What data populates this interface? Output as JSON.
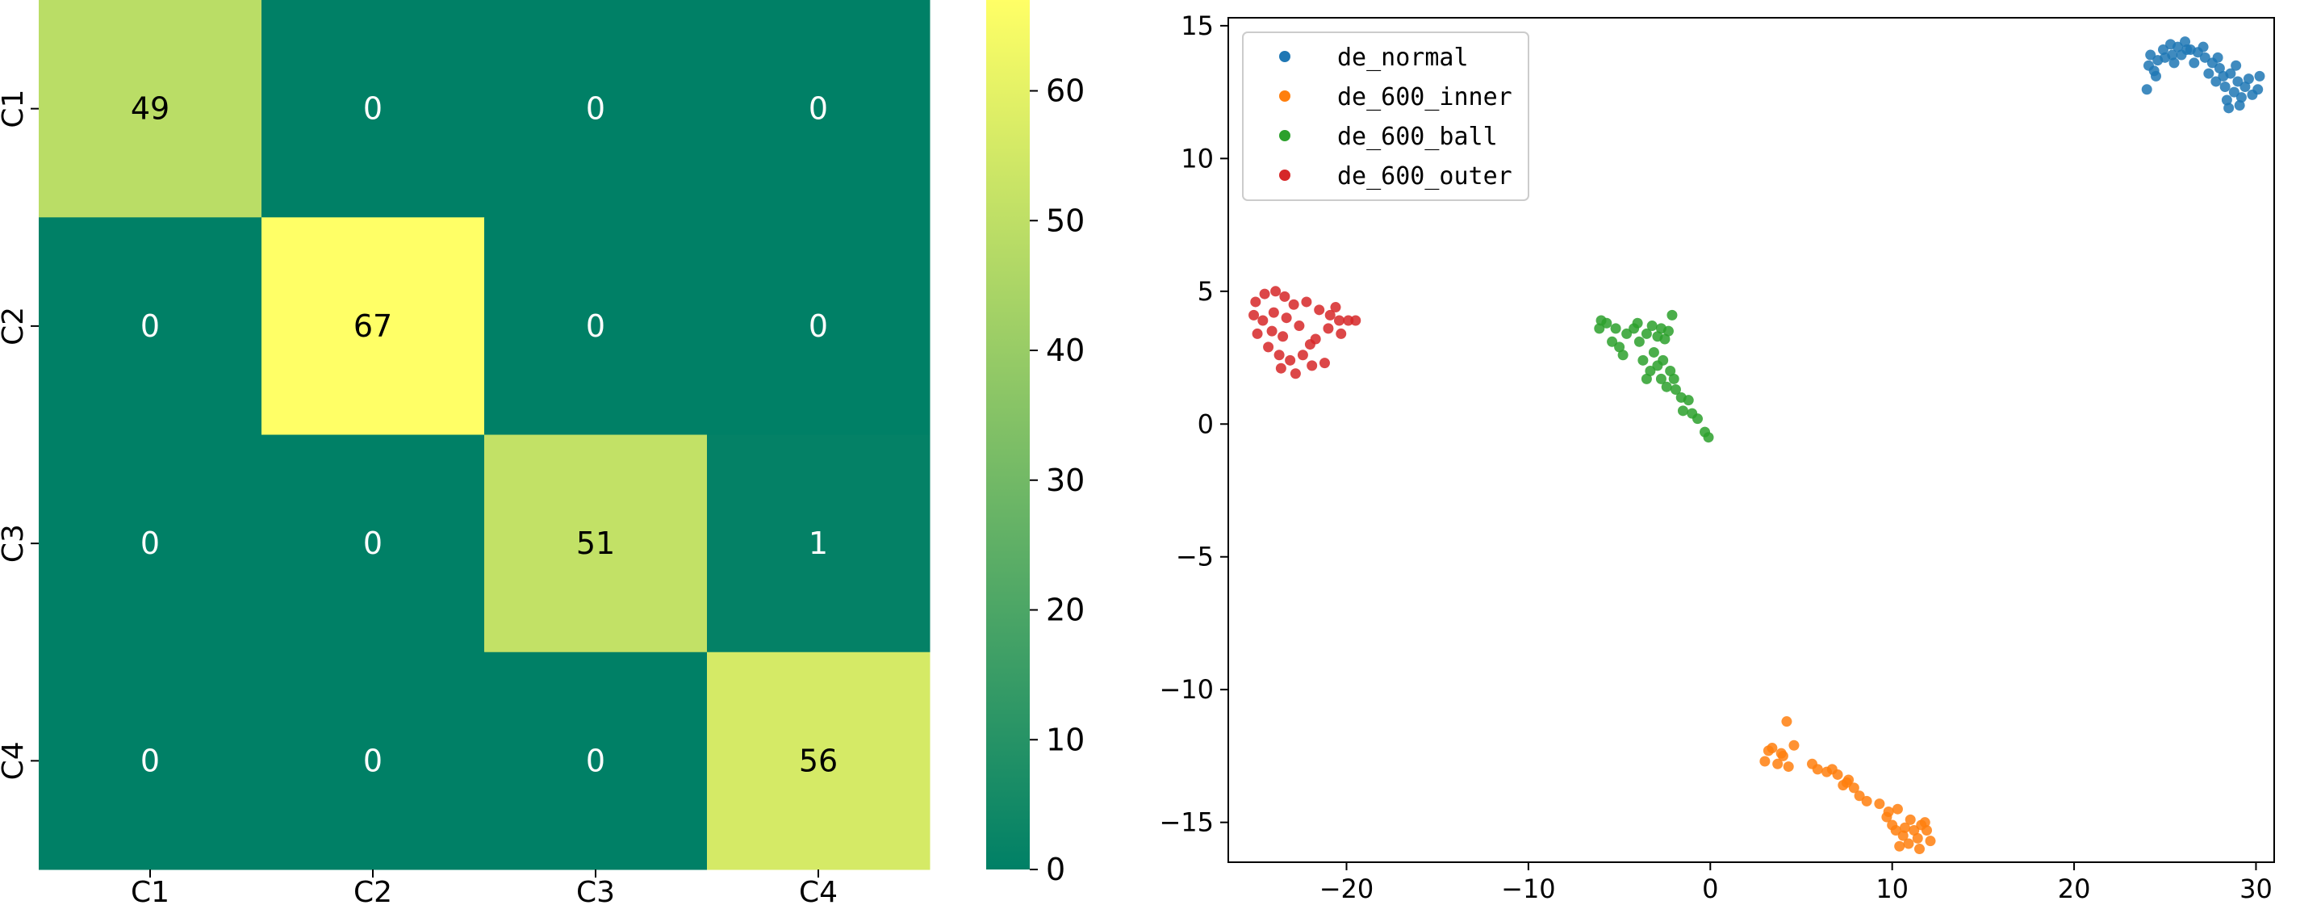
{
  "chart_data": [
    {
      "type": "heatmap",
      "title": "",
      "row_labels": [
        "C1",
        "C2",
        "C3",
        "C4"
      ],
      "col_labels": [
        "C1",
        "C2",
        "C3",
        "C4"
      ],
      "matrix": [
        [
          49,
          0,
          0,
          0
        ],
        [
          0,
          67,
          0,
          0
        ],
        [
          0,
          0,
          51,
          1
        ],
        [
          0,
          0,
          0,
          56
        ]
      ],
      "cell_text": [
        [
          "49",
          "0",
          "0",
          "0"
        ],
        [
          "0",
          "67",
          "0",
          "0"
        ],
        [
          "0",
          "0",
          "51",
          "1"
        ],
        [
          "0",
          "0",
          "0",
          "56"
        ]
      ],
      "colormap": "summer",
      "colorbar": {
        "range": [
          0,
          67
        ],
        "ticks": [
          0,
          10,
          20,
          30,
          40,
          50,
          60
        ],
        "tick_labels": [
          "0",
          "10",
          "20",
          "30",
          "40",
          "50",
          "60"
        ]
      },
      "xlabel": "",
      "ylabel": ""
    },
    {
      "type": "scatter",
      "title": "",
      "xlabel": "",
      "ylabel": "",
      "xlim": [
        -26.5,
        31
      ],
      "ylim": [
        -16.5,
        15.3
      ],
      "xticks": [
        -20,
        -10,
        0,
        10,
        20,
        30
      ],
      "xtick_labels": [
        "−20",
        "−10",
        "0",
        "10",
        "20",
        "30"
      ],
      "yticks": [
        -15,
        -10,
        -5,
        0,
        5,
        10,
        15
      ],
      "ytick_labels": [
        "−15",
        "−10",
        "−5",
        "0",
        "5",
        "10",
        "15"
      ],
      "legend_position": "top-left",
      "series": [
        {
          "name": "de_normal",
          "color": "#1f77b4",
          "points": [
            [
              24.0,
              12.6
            ],
            [
              24.1,
              13.5
            ],
            [
              24.2,
              13.9
            ],
            [
              24.4,
              13.3
            ],
            [
              24.6,
              13.7
            ],
            [
              24.9,
              14.1
            ],
            [
              25.0,
              13.8
            ],
            [
              25.3,
              14.3
            ],
            [
              25.5,
              13.6
            ],
            [
              25.7,
              14.2
            ],
            [
              25.9,
              13.9
            ],
            [
              26.1,
              14.4
            ],
            [
              26.4,
              14.1
            ],
            [
              26.6,
              13.6
            ],
            [
              26.8,
              14.0
            ],
            [
              27.1,
              14.2
            ],
            [
              27.2,
              13.8
            ],
            [
              27.4,
              13.2
            ],
            [
              27.6,
              13.6
            ],
            [
              27.8,
              12.9
            ],
            [
              28.0,
              13.4
            ],
            [
              28.2,
              13.1
            ],
            [
              28.3,
              12.7
            ],
            [
              28.4,
              12.2
            ],
            [
              28.6,
              13.2
            ],
            [
              28.8,
              12.5
            ],
            [
              29.0,
              12.9
            ],
            [
              29.2,
              12.3
            ],
            [
              29.4,
              12.7
            ],
            [
              29.6,
              13.0
            ],
            [
              29.8,
              12.4
            ],
            [
              30.1,
              12.6
            ],
            [
              30.2,
              13.1
            ],
            [
              28.5,
              11.9
            ],
            [
              29.1,
              12.0
            ],
            [
              26.2,
              14.1
            ],
            [
              25.4,
              13.9
            ],
            [
              27.9,
              13.8
            ],
            [
              24.5,
              13.1
            ],
            [
              28.9,
              13.5
            ]
          ]
        },
        {
          "name": "de_600_inner",
          "color": "#ff7f0e",
          "points": [
            [
              4.2,
              -11.2
            ],
            [
              3.4,
              -12.2
            ],
            [
              3.9,
              -12.4
            ],
            [
              4.6,
              -12.1
            ],
            [
              3.0,
              -12.7
            ],
            [
              4.3,
              -12.9
            ],
            [
              3.2,
              -12.3
            ],
            [
              3.7,
              -12.8
            ],
            [
              5.6,
              -12.8
            ],
            [
              5.9,
              -13.0
            ],
            [
              6.4,
              -13.1
            ],
            [
              6.7,
              -13.0
            ],
            [
              7.0,
              -13.2
            ],
            [
              7.3,
              -13.6
            ],
            [
              7.6,
              -13.4
            ],
            [
              7.9,
              -13.7
            ],
            [
              8.2,
              -14.0
            ],
            [
              8.6,
              -14.2
            ],
            [
              9.3,
              -14.3
            ],
            [
              9.7,
              -14.8
            ],
            [
              10.0,
              -15.1
            ],
            [
              10.3,
              -14.5
            ],
            [
              10.6,
              -15.5
            ],
            [
              10.9,
              -15.8
            ],
            [
              11.0,
              -14.9
            ],
            [
              11.2,
              -15.3
            ],
            [
              11.4,
              -15.6
            ],
            [
              11.6,
              -15.1
            ],
            [
              11.9,
              -15.3
            ],
            [
              12.1,
              -15.7
            ],
            [
              10.4,
              -15.9
            ],
            [
              11.5,
              -16.0
            ],
            [
              9.8,
              -14.6
            ],
            [
              10.2,
              -15.3
            ],
            [
              11.8,
              -15.0
            ],
            [
              7.5,
              -13.5
            ],
            [
              4.0,
              -12.5
            ],
            [
              10.7,
              -15.2
            ]
          ]
        },
        {
          "name": "de_600_ball",
          "color": "#2ca02c",
          "points": [
            [
              -6.0,
              3.9
            ],
            [
              -5.7,
              3.8
            ],
            [
              -6.1,
              3.6
            ],
            [
              -5.4,
              3.1
            ],
            [
              -5.0,
              2.9
            ],
            [
              -4.6,
              3.4
            ],
            [
              -4.2,
              3.6
            ],
            [
              -3.9,
              3.1
            ],
            [
              -3.5,
              3.4
            ],
            [
              -3.2,
              3.7
            ],
            [
              -2.9,
              3.3
            ],
            [
              -2.7,
              3.6
            ],
            [
              -2.5,
              3.2
            ],
            [
              -2.3,
              3.5
            ],
            [
              -2.1,
              4.1
            ],
            [
              -3.1,
              2.7
            ],
            [
              -2.6,
              2.4
            ],
            [
              -3.3,
              2.0
            ],
            [
              -2.9,
              2.2
            ],
            [
              -2.2,
              2.0
            ],
            [
              -3.5,
              1.7
            ],
            [
              -2.7,
              1.7
            ],
            [
              -2.0,
              1.7
            ],
            [
              -2.4,
              1.4
            ],
            [
              -1.9,
              1.3
            ],
            [
              -1.6,
              1.0
            ],
            [
              -1.2,
              0.9
            ],
            [
              -1.5,
              0.5
            ],
            [
              -1.0,
              0.4
            ],
            [
              -0.7,
              0.2
            ],
            [
              -0.3,
              -0.3
            ],
            [
              -0.1,
              -0.5
            ],
            [
              -4.8,
              2.6
            ],
            [
              -3.7,
              2.4
            ],
            [
              -5.2,
              3.6
            ],
            [
              -4.0,
              3.8
            ]
          ]
        },
        {
          "name": "de_600_outer",
          "color": "#d62728",
          "points": [
            [
              -25.0,
              4.6
            ],
            [
              -24.5,
              4.9
            ],
            [
              -23.9,
              5.0
            ],
            [
              -23.4,
              4.8
            ],
            [
              -22.9,
              4.5
            ],
            [
              -22.2,
              4.6
            ],
            [
              -21.5,
              4.3
            ],
            [
              -20.9,
              4.1
            ],
            [
              -20.4,
              3.9
            ],
            [
              -19.9,
              3.9
            ],
            [
              -19.5,
              3.9
            ],
            [
              -20.3,
              3.4
            ],
            [
              -21.0,
              3.6
            ],
            [
              -21.7,
              3.2
            ],
            [
              -22.4,
              2.6
            ],
            [
              -23.1,
              2.4
            ],
            [
              -23.7,
              2.6
            ],
            [
              -24.3,
              2.9
            ],
            [
              -24.9,
              3.4
            ],
            [
              -25.1,
              4.1
            ],
            [
              -24.6,
              3.9
            ],
            [
              -24.0,
              4.2
            ],
            [
              -23.3,
              4.0
            ],
            [
              -22.6,
              3.7
            ],
            [
              -21.9,
              2.2
            ],
            [
              -22.8,
              1.9
            ],
            [
              -23.6,
              2.1
            ],
            [
              -21.2,
              2.3
            ],
            [
              -24.1,
              3.5
            ],
            [
              -20.6,
              4.4
            ],
            [
              -22.0,
              3.0
            ],
            [
              -23.5,
              3.3
            ]
          ]
        }
      ]
    }
  ]
}
